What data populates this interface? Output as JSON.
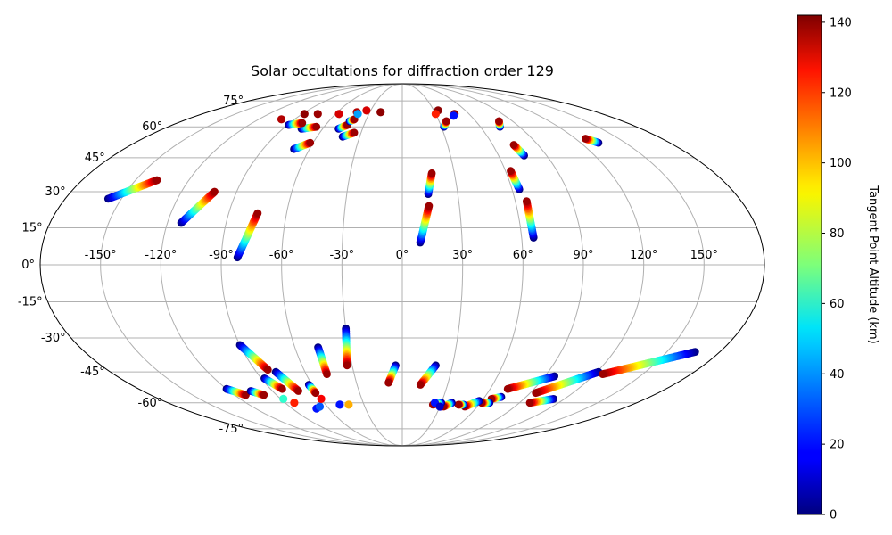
{
  "chart_data": {
    "type": "scatter",
    "projection": "mollweide",
    "title": "Solar occultations for diffraction order 129",
    "lon_ticks": [
      "-150°",
      "-120°",
      "-90°",
      "-60°",
      "-30°",
      "0°",
      "30°",
      "60°",
      "90°",
      "120°",
      "150°"
    ],
    "lon_tick_values": [
      -150,
      -120,
      -90,
      -60,
      -30,
      0,
      30,
      60,
      90,
      120,
      150
    ],
    "lat_ticks": [
      "75°",
      "60°",
      "45°",
      "30°",
      "15°",
      "0°",
      "-15°",
      "-30°",
      "-45°",
      "-60°",
      "-75°"
    ],
    "lat_tick_values": [
      75,
      60,
      45,
      30,
      15,
      0,
      -15,
      -30,
      -45,
      -60,
      -75
    ],
    "grid": true,
    "colorbar": {
      "label": "Tangent Point Altitude (km)",
      "min": 0,
      "max": 142,
      "ticks": [
        0,
        20,
        40,
        60,
        80,
        100,
        120,
        140
      ],
      "tick_labels": [
        "0",
        "20",
        "40",
        "60",
        "80",
        "100",
        "120",
        "140"
      ],
      "colormap": "jet"
    },
    "tracks": [
      {
        "lon0": -157,
        "lat0": 27,
        "lon1": -138,
        "lat1": 35
      },
      {
        "lon0": -113,
        "lat0": 17,
        "lon1": -102,
        "lat1": 30
      },
      {
        "lon0": -82,
        "lat0": 3,
        "lon1": -75,
        "lat1": 21
      },
      {
        "lon0": -70,
        "lat0": 49,
        "lon1": -62,
        "lat1": 52
      },
      {
        "lon0": -76,
        "lat0": 59,
        "lon1": -66,
        "lat1": 60
      },
      {
        "lon0": -89,
        "lat0": 61,
        "lon1": -80,
        "lat1": 62
      },
      {
        "lon0": -42,
        "lat0": 55,
        "lon1": -35,
        "lat1": 57
      },
      {
        "lon0": -48,
        "lat0": 59,
        "lon1": -43,
        "lat1": 61
      },
      {
        "lon0": -43,
        "lat0": 63,
        "lon1": -40,
        "lat1": 64
      },
      {
        "lon0": 9,
        "lat0": 9,
        "lon1": 14,
        "lat1": 24
      },
      {
        "lon0": 14,
        "lat0": 29,
        "lon1": 17,
        "lat1": 38
      },
      {
        "lon0": 64,
        "lat0": 31,
        "lon1": 63,
        "lat1": 39
      },
      {
        "lon0": 66,
        "lat0": 11,
        "lon1": 66,
        "lat1": 26
      },
      {
        "lon0": 76,
        "lat0": 46,
        "lon1": 74,
        "lat1": 51
      },
      {
        "lon0": 132,
        "lat0": 52,
        "lon1": 127,
        "lat1": 54
      },
      {
        "lon0": 32,
        "lat0": 60,
        "lon1": 36,
        "lat1": 63
      },
      {
        "lon0": 75,
        "lat0": 60,
        "lon1": 79,
        "lat1": 63
      },
      {
        "lon0": -120,
        "lat0": -53,
        "lon1": -112,
        "lat1": -56
      },
      {
        "lon0": -105,
        "lat0": -54,
        "lon1": -99,
        "lat1": -56
      },
      {
        "lon0": -90,
        "lat0": -33,
        "lon1": -82,
        "lat1": -44
      },
      {
        "lon0": -88,
        "lat0": -48,
        "lon1": -82,
        "lat1": -53
      },
      {
        "lon0": -78,
        "lat0": -45,
        "lon1": -72,
        "lat1": -54
      },
      {
        "lon0": -62,
        "lat0": -51,
        "lon1": -61,
        "lat1": -55
      },
      {
        "lon0": -47,
        "lat0": -34,
        "lon1": -47,
        "lat1": -46
      },
      {
        "lon0": -30,
        "lat0": -26,
        "lon1": -33,
        "lat1": -42
      },
      {
        "lon0": -4,
        "lat0": -42,
        "lon1": -9,
        "lat1": -50
      },
      {
        "lon0": 20,
        "lat0": -42,
        "lon1": 12,
        "lat1": -51
      },
      {
        "lon0": 96,
        "lat0": -47,
        "lon1": 72,
        "lat1": -53
      },
      {
        "lon0": 121,
        "lat0": -45,
        "lon1": 94,
        "lat1": -55
      },
      {
        "lon0": 166,
        "lat0": -36,
        "lon1": 125,
        "lat1": -46
      },
      {
        "lon0": 112,
        "lat0": -58,
        "lon1": 98,
        "lat1": -60
      },
      {
        "lon0": 72,
        "lat0": -57,
        "lon1": 66,
        "lat1": -58
      },
      {
        "lon0": 67,
        "lat0": -60,
        "lon1": 61,
        "lat1": -60
      },
      {
        "lon0": 58,
        "lat0": -59,
        "lon1": 50,
        "lat1": -62
      },
      {
        "lon0": 48,
        "lat0": -61,
        "lon1": 44,
        "lat1": -61
      },
      {
        "lon0": 38,
        "lat0": -60,
        "lon1": 33,
        "lat1": -62
      },
      {
        "lon0": 30,
        "lat0": -60,
        "lon1": 24,
        "lat1": -61
      }
    ],
    "spots": [
      {
        "lon": -101,
        "lat": 64,
        "alt": 135
      },
      {
        "lon": -88,
        "lat": 67,
        "alt": 140
      },
      {
        "lon": -76,
        "lat": 67,
        "alt": 138
      },
      {
        "lon": -57,
        "lat": 67,
        "alt": 130
      },
      {
        "lon": -42,
        "lat": 68,
        "alt": 135
      },
      {
        "lon": -40,
        "lat": 67,
        "alt": 40
      },
      {
        "lon": -34,
        "lat": 69,
        "alt": 130
      },
      {
        "lon": -20,
        "lat": 68,
        "alt": 140
      },
      {
        "lon": 34,
        "lat": 69,
        "alt": 140
      },
      {
        "lon": 30,
        "lat": 67,
        "alt": 120
      },
      {
        "lon": 47,
        "lat": 67,
        "alt": 140
      },
      {
        "lon": 45,
        "lat": 66,
        "alt": 20
      },
      {
        "lon": -88,
        "lat": -58,
        "alt": 60
      },
      {
        "lon": -83,
        "lat": -60,
        "alt": 120
      },
      {
        "lon": -70,
        "lat": -63,
        "alt": 20
      },
      {
        "lon": -66,
        "lat": -62,
        "alt": 30
      },
      {
        "lon": -60,
        "lat": -58,
        "alt": 125
      },
      {
        "lon": -49,
        "lat": -61,
        "alt": 20
      },
      {
        "lon": -42,
        "lat": -61,
        "alt": 100
      },
      {
        "lon": 25,
        "lat": -60,
        "alt": 20
      },
      {
        "lon": 30,
        "lat": -62,
        "alt": 10
      }
    ]
  }
}
